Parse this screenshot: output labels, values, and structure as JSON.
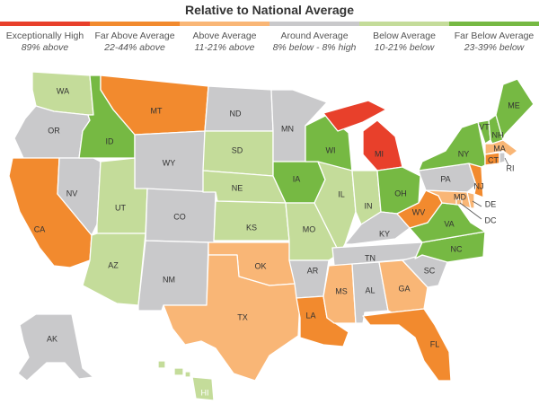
{
  "title": "Relative to National Average",
  "legend": [
    {
      "label": "Exceptionally High",
      "sub": "89% above",
      "color": "#e8402b"
    },
    {
      "label": "Far Above Average",
      "sub": "22-44% above",
      "color": "#f28a2e"
    },
    {
      "label": "Above Average",
      "sub": "11-21% above",
      "color": "#f9b676"
    },
    {
      "label": "Around Average",
      "sub": "8% below - 8% high",
      "color": "#c9c9cb"
    },
    {
      "label": "Below Average",
      "sub": "10-21% below",
      "color": "#c4dc9a"
    },
    {
      "label": "Far Below Average",
      "sub": "23-39% below",
      "color": "#76b943"
    }
  ],
  "states": {
    "WA": "below",
    "OR": "around",
    "CA": "far_above",
    "NV": "around",
    "ID": "far_below",
    "MT": "far_above",
    "WY": "around",
    "UT": "below",
    "AZ": "below",
    "CO": "around",
    "NM": "around",
    "ND": "around",
    "SD": "below",
    "NE": "below",
    "KS": "below",
    "OK": "above",
    "TX": "above",
    "MN": "around",
    "IA": "far_below",
    "MO": "below",
    "AR": "around",
    "LA": "far_above",
    "WI": "far_below",
    "IL": "below",
    "MI": "exceptional",
    "IN": "below",
    "OH": "far_below",
    "KY": "around",
    "TN": "around",
    "MS": "above",
    "AL": "around",
    "GA": "above",
    "FL": "far_above",
    "SC": "around",
    "NC": "far_below",
    "VA": "far_below",
    "WV": "far_above",
    "PA": "around",
    "NY": "far_below",
    "VT": "far_below",
    "NH": "far_below",
    "ME": "far_below",
    "MA": "above",
    "RI": "around",
    "CT": "far_above",
    "NJ": "far_above",
    "DE": "above",
    "MD": "above",
    "DC": "above",
    "AK": "around",
    "HI": "below"
  }
}
